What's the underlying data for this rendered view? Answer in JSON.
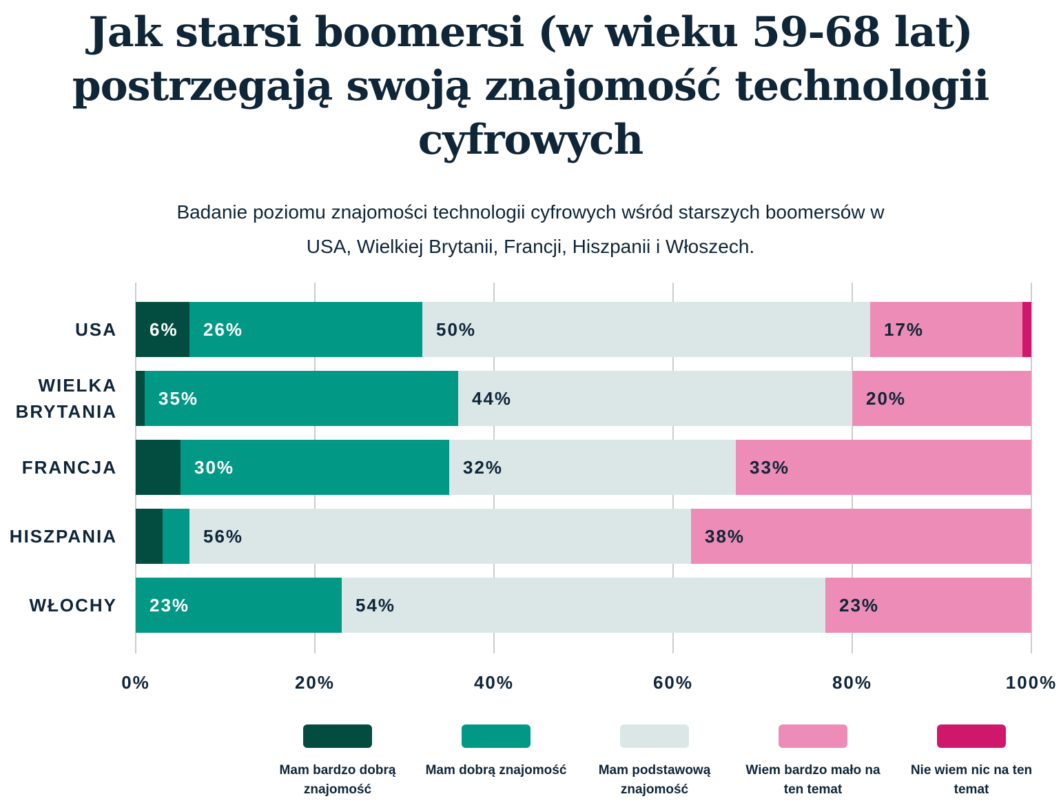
{
  "chart_data": {
    "type": "stacked-bar-horizontal",
    "title": "Jak starsi boomersi (w wieku 59-68 lat) postrzegają swoją znajomość technologii cyfrowych",
    "subtitle": "Badanie poziomu znajomości technologii cyfrowych wśród starszych boomersów w USA, Wielkiej Brytanii, Francji, Hiszpanii i Włoszech.",
    "categories": [
      "USA",
      "WIELKA BRYTANIA",
      "FRANCJA",
      "HISZPANIA",
      "WŁOCHY"
    ],
    "series": [
      {
        "name": "Mam bardzo dobrą znajomość",
        "color": "#024d40",
        "values": [
          6,
          1,
          5,
          3,
          0
        ],
        "value_labels": [
          "6%",
          null,
          null,
          null,
          null
        ]
      },
      {
        "name": "Mam dobrą znajomość",
        "color": "#019886",
        "values": [
          26,
          35,
          30,
          3,
          23
        ],
        "value_labels": [
          "26%",
          "35%",
          "30%",
          null,
          "23%"
        ]
      },
      {
        "name": "Mam podstawową znajomość",
        "color": "#dae7e6",
        "values": [
          50,
          44,
          32,
          56,
          54
        ],
        "value_labels": [
          "50%",
          "44%",
          "32%",
          "56%",
          "54%"
        ]
      },
      {
        "name": "Wiem bardzo mało na ten temat",
        "color": "#ed8cb6",
        "values": [
          17,
          20,
          33,
          38,
          23
        ],
        "value_labels": [
          "17%",
          "20%",
          "33%",
          "38%",
          "23%"
        ]
      },
      {
        "name": "Nie wiem nic na ten temat",
        "color": "#cf186b",
        "values": [
          1,
          0,
          0,
          0,
          0
        ],
        "value_labels": [
          null,
          null,
          null,
          null,
          null
        ]
      }
    ],
    "xlim": [
      0,
      100
    ],
    "xticks": [
      {
        "value": 0,
        "label": "0%"
      },
      {
        "value": 20,
        "label": "20%"
      },
      {
        "value": 40,
        "label": "40%"
      },
      {
        "value": 60,
        "label": "60%"
      },
      {
        "value": 80,
        "label": "80%"
      },
      {
        "value": 100,
        "label": "100%"
      }
    ],
    "grid": true
  }
}
